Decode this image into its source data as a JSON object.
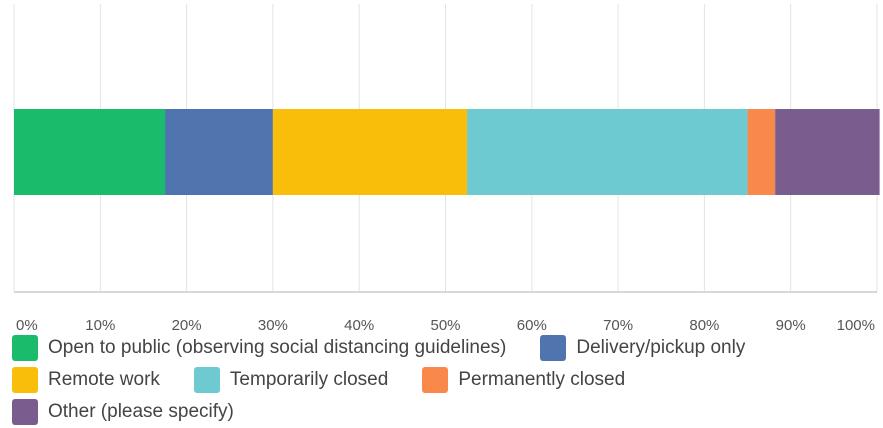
{
  "chart_data": {
    "type": "bar",
    "orientation": "horizontal",
    "stacked": true,
    "categories": [
      ""
    ],
    "series": [
      {
        "name": "Open to public (observing social distancing guidelines)",
        "values": [
          17.5
        ],
        "color": "#1ABC6B"
      },
      {
        "name": "Delivery/pickup only",
        "values": [
          12.5
        ],
        "color": "#5075AE"
      },
      {
        "name": "Remote work",
        "values": [
          22.5
        ],
        "color": "#F8BE0A"
      },
      {
        "name": "Temporarily closed",
        "values": [
          32.5
        ],
        "color": "#6DCAD0"
      },
      {
        "name": "Permanently closed",
        "values": [
          3.2
        ],
        "color": "#F9894B"
      },
      {
        "name": "Other (please specify)",
        "values": [
          12.1
        ],
        "color": "#7A5C8F"
      }
    ],
    "xlim": [
      0,
      100
    ],
    "x_ticks": [
      "0%",
      "10%",
      "20%",
      "30%",
      "40%",
      "50%",
      "60%",
      "70%",
      "80%",
      "90%",
      "100%"
    ],
    "grid": true,
    "legend_position": "bottom"
  }
}
